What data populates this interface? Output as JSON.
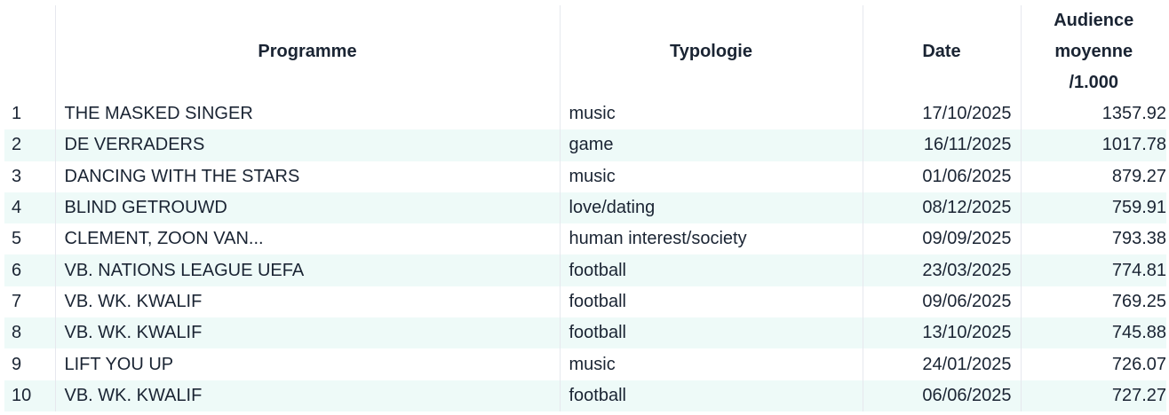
{
  "headers": [
    "",
    "Programme",
    "Typologie",
    "Date",
    "Audience moyenne /1.000"
  ],
  "rows": [
    [
      "1",
      "THE MASKED SINGER",
      "music",
      "17/10/2025",
      "1357.92"
    ],
    [
      "2",
      "DE VERRADERS",
      "game",
      "16/11/2025",
      "1017.78"
    ],
    [
      "3",
      "DANCING WITH THE STARS",
      "music",
      "01/06/2025",
      "879.27"
    ],
    [
      "4",
      "BLIND GETROUWD",
      "love/dating",
      "08/12/2025",
      "759.91"
    ],
    [
      "5",
      "CLEMENT, ZOON VAN...",
      "human interest/society",
      "09/09/2025",
      "793.38"
    ],
    [
      "6",
      "VB. NATIONS LEAGUE UEFA",
      "football",
      "23/03/2025",
      "774.81"
    ],
    [
      "7",
      "VB. WK. KWALIF",
      "football",
      "09/06/2025",
      "769.25"
    ],
    [
      "8",
      "VB. WK. KWALIF",
      "football",
      "13/10/2025",
      "745.88"
    ],
    [
      "9",
      "LIFT YOU UP",
      "music",
      "24/01/2025",
      "726.07"
    ],
    [
      "10",
      "VB. WK. KWALIF",
      "football",
      "06/06/2025",
      "727.27"
    ]
  ],
  "colors": {
    "stripe": "#eefaf8",
    "text": "#1a2433"
  }
}
